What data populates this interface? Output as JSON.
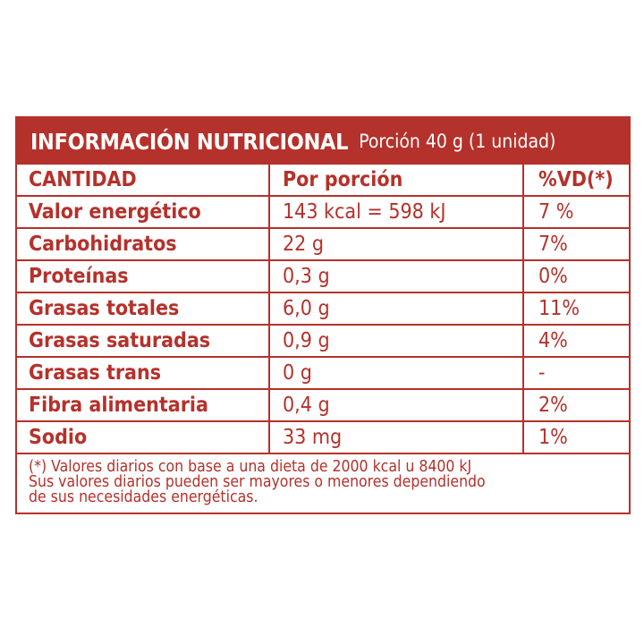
{
  "header": {
    "title": "INFORMACIÓN NUTRICIONAL",
    "subtitle": "Porción 40 g (1 unidad)"
  },
  "columns": {
    "nutrient": "CANTIDAD",
    "per_serving": "Por porción",
    "daily_value": "%VD(*)"
  },
  "rows": [
    {
      "nutrient": "Valor energético",
      "per_serving": "143 kcal = 598 kJ",
      "daily_value": "7 %"
    },
    {
      "nutrient": "Carbohidratos",
      "per_serving": "22 g",
      "daily_value": "7%"
    },
    {
      "nutrient": "Proteínas",
      "per_serving": "0,3 g",
      "daily_value": "0%"
    },
    {
      "nutrient": "Grasas totales",
      "per_serving": "6,0 g",
      "daily_value": "11%"
    },
    {
      "nutrient": "Grasas saturadas",
      "per_serving": "0,9 g",
      "daily_value": "4%"
    },
    {
      "nutrient": "Grasas trans",
      "per_serving": "0 g",
      "daily_value": "-"
    },
    {
      "nutrient": "Fibra alimentaria",
      "per_serving": "0,4 g",
      "daily_value": "2%"
    },
    {
      "nutrient": "Sodio",
      "per_serving": "33 mg",
      "daily_value": "1%"
    }
  ],
  "footnote": {
    "line1": "(*) Valores diarios con base a una dieta de 2000 kcal u 8400 kJ",
    "line2": "Sus valores diarios pueden ser mayores o menores dependiendo",
    "line3": "de sus necesidades energéticas."
  },
  "colors": {
    "accent": "#b5312b",
    "background": "#ffffff"
  }
}
